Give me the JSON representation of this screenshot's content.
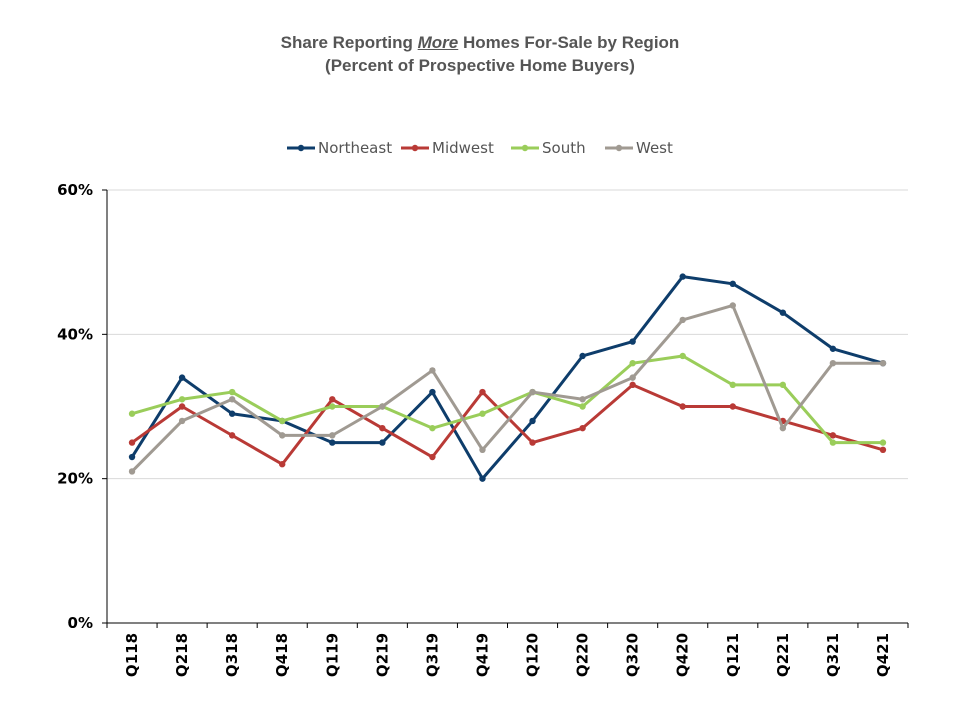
{
  "chart_data": {
    "type": "line",
    "title_parts": [
      "Share Reporting ",
      "More",
      " Homes For-Sale by Region"
    ],
    "subtitle": "(Percent of Prospective Home Buyers)",
    "xlabel": "",
    "ylabel": "",
    "ylim": [
      0,
      60
    ],
    "y_ticks": [
      0,
      20,
      40,
      60
    ],
    "y_tick_labels": [
      "0%",
      "20%",
      "40%",
      "60%"
    ],
    "grid": true,
    "legend_position": "top",
    "categories": [
      "Q118",
      "Q218",
      "Q318",
      "Q418",
      "Q119",
      "Q219",
      "Q319",
      "Q419",
      "Q120",
      "Q220",
      "Q320",
      "Q420",
      "Q121",
      "Q221",
      "Q321",
      "Q421"
    ],
    "series": [
      {
        "name": "Northeast",
        "color": "#0e3d6b",
        "values": [
          23,
          34,
          29,
          28,
          25,
          25,
          32,
          20,
          28,
          37,
          39,
          48,
          47,
          43,
          38,
          36
        ]
      },
      {
        "name": "Midwest",
        "color": "#b93a36",
        "values": [
          25,
          30,
          26,
          22,
          31,
          27,
          23,
          32,
          25,
          27,
          33,
          30,
          30,
          28,
          26,
          24
        ]
      },
      {
        "name": "South",
        "color": "#9acd5a",
        "values": [
          29,
          31,
          32,
          28,
          30,
          30,
          27,
          29,
          32,
          30,
          36,
          37,
          33,
          33,
          25,
          25
        ]
      },
      {
        "name": "West",
        "color": "#a09a92",
        "values": [
          21,
          28,
          31,
          26,
          26,
          30,
          35,
          24,
          32,
          31,
          34,
          42,
          44,
          27,
          36,
          36
        ]
      }
    ]
  }
}
